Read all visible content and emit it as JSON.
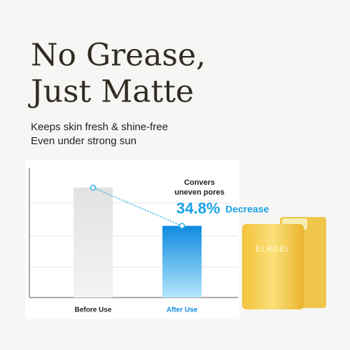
{
  "headline": [
    "No Grease,",
    "Just Matte"
  ],
  "subtitle": [
    "Keeps skin fresh & shine-free",
    "Even under strong sun"
  ],
  "chart_data": {
    "type": "bar",
    "categories": [
      "Before Use",
      "After Use"
    ],
    "values": [
      100,
      65.2
    ],
    "colors": [
      "#e4e4e4",
      "#0f8be0"
    ],
    "annotations": [
      "Convers",
      "uneven pores"
    ],
    "change": "34.8%",
    "change_text": "Decrease"
  },
  "product": {
    "brand": "ELROEL"
  }
}
